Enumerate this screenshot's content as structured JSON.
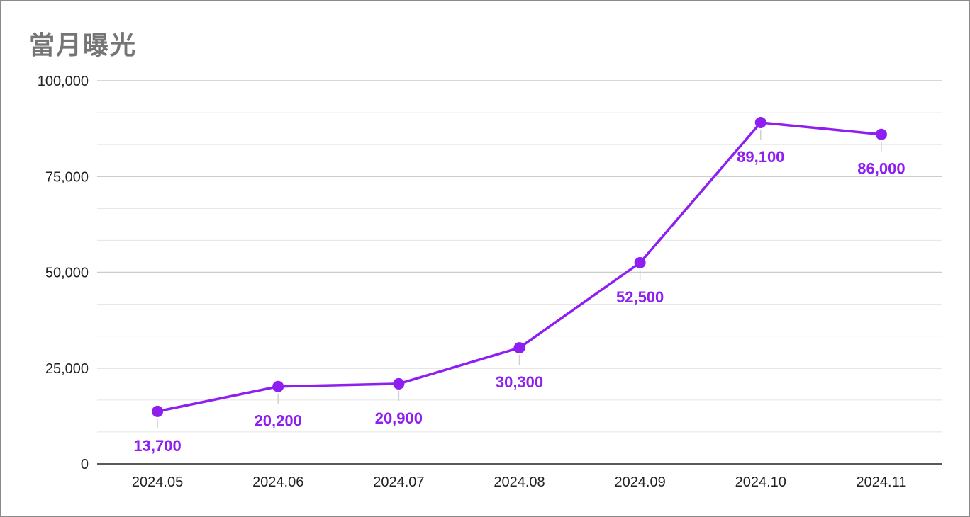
{
  "chart_data": {
    "type": "line",
    "title": "當月曝光",
    "categories": [
      "2024.05",
      "2024.06",
      "2024.07",
      "2024.08",
      "2024.09",
      "2024.10",
      "2024.11"
    ],
    "values": [
      13700,
      20200,
      20900,
      30300,
      52500,
      89100,
      86000
    ],
    "data_labels": [
      "13,700",
      "20,200",
      "20,900",
      "30,300",
      "52,500",
      "89,100",
      "86,000"
    ],
    "ylim": [
      0,
      100000
    ],
    "y_ticks": [
      0,
      25000,
      50000,
      75000,
      100000
    ],
    "y_tick_labels": [
      "0",
      "25,000",
      "50,000",
      "75,000",
      "100,000"
    ],
    "minor_gridlines": true,
    "legend": "none",
    "colors": {
      "series": "#8f1ef0",
      "grid": "#cccccc",
      "axis": "#222222",
      "title": "#757575"
    }
  }
}
